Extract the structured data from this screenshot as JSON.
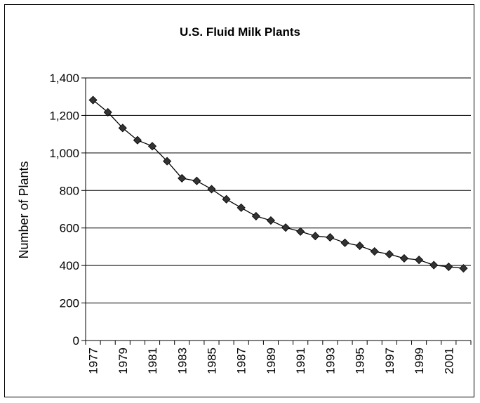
{
  "chart_data": {
    "type": "line",
    "title": "U.S. Fluid Milk Plants",
    "xlabel": "",
    "ylabel": "Number of Plants",
    "ylim": [
      0,
      1400
    ],
    "yticks": [
      0,
      200,
      400,
      600,
      800,
      1000,
      1200,
      1400
    ],
    "ytick_labels": [
      "0",
      "200",
      "400",
      "600",
      "800",
      "1,000",
      "1,200",
      "1,400"
    ],
    "x": [
      1977,
      1978,
      1979,
      1980,
      1981,
      1982,
      1983,
      1984,
      1985,
      1986,
      1987,
      1988,
      1989,
      1990,
      1991,
      1992,
      1993,
      1994,
      1995,
      1996,
      1997,
      1998,
      1999,
      2000,
      2001,
      2002
    ],
    "xtick_labels": [
      "1977",
      "1979",
      "1981",
      "1983",
      "1985",
      "1987",
      "1989",
      "1991",
      "1993",
      "1995",
      "1997",
      "1999",
      "2001"
    ],
    "series": [
      {
        "values": [
          1282,
          1217,
          1133,
          1068,
          1036,
          956,
          865,
          851,
          807,
          753,
          708,
          663,
          640,
          602,
          581,
          557,
          550,
          521,
          505,
          475,
          460,
          438,
          430,
          402,
          393,
          385
        ]
      }
    ],
    "grid": true,
    "legend": "none",
    "colors": {
      "line": "#000000",
      "marker": "#333333",
      "grid": "#000000"
    }
  }
}
